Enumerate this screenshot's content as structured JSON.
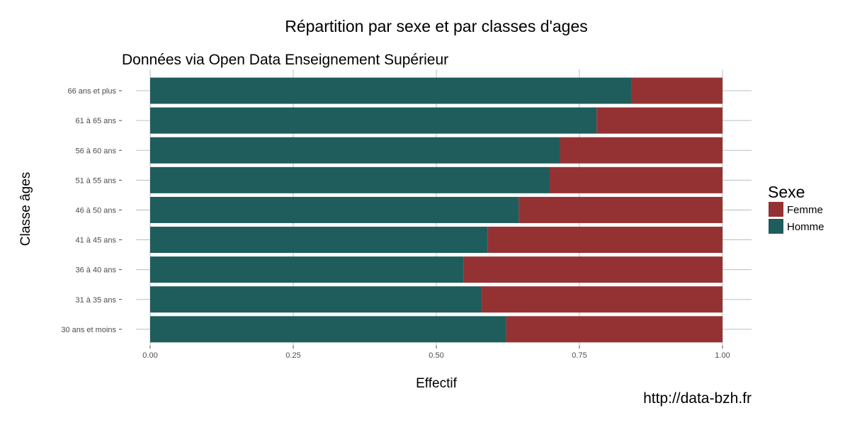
{
  "chart_data": {
    "type": "bar",
    "orientation": "horizontal",
    "stacked": true,
    "title": "Répartition par sexe et par classes d'ages",
    "subtitle": "Données via Open Data Enseignement Supérieur",
    "xlabel": "Effectif",
    "ylabel": "Classe âges",
    "xlim": [
      0,
      1
    ],
    "xticks": [
      "0.00",
      "0.25",
      "0.50",
      "0.75",
      "1.00"
    ],
    "categories": [
      "30 ans et moins",
      "31 à 35 ans",
      "36 à 40 ans",
      "41 à 45 ans",
      "46 à 50 ans",
      "51 à 55 ans",
      "56 à 60 ans",
      "61 à 65 ans",
      "66 ans et plus"
    ],
    "series": [
      {
        "name": "Homme",
        "color": "#1f5c5c",
        "values": [
          0.622,
          0.578,
          0.548,
          0.59,
          0.644,
          0.698,
          0.716,
          0.78,
          0.841
        ]
      },
      {
        "name": "Femme",
        "color": "#943233",
        "values": [
          0.378,
          0.422,
          0.452,
          0.41,
          0.356,
          0.302,
          0.284,
          0.22,
          0.159
        ]
      }
    ],
    "legend": {
      "title": "Sexe",
      "position": "right",
      "items": [
        {
          "label": "Femme",
          "color": "#943233"
        },
        {
          "label": "Homme",
          "color": "#1f5c5c"
        }
      ]
    },
    "grid": true,
    "source_note": "http://data-bzh.fr"
  }
}
